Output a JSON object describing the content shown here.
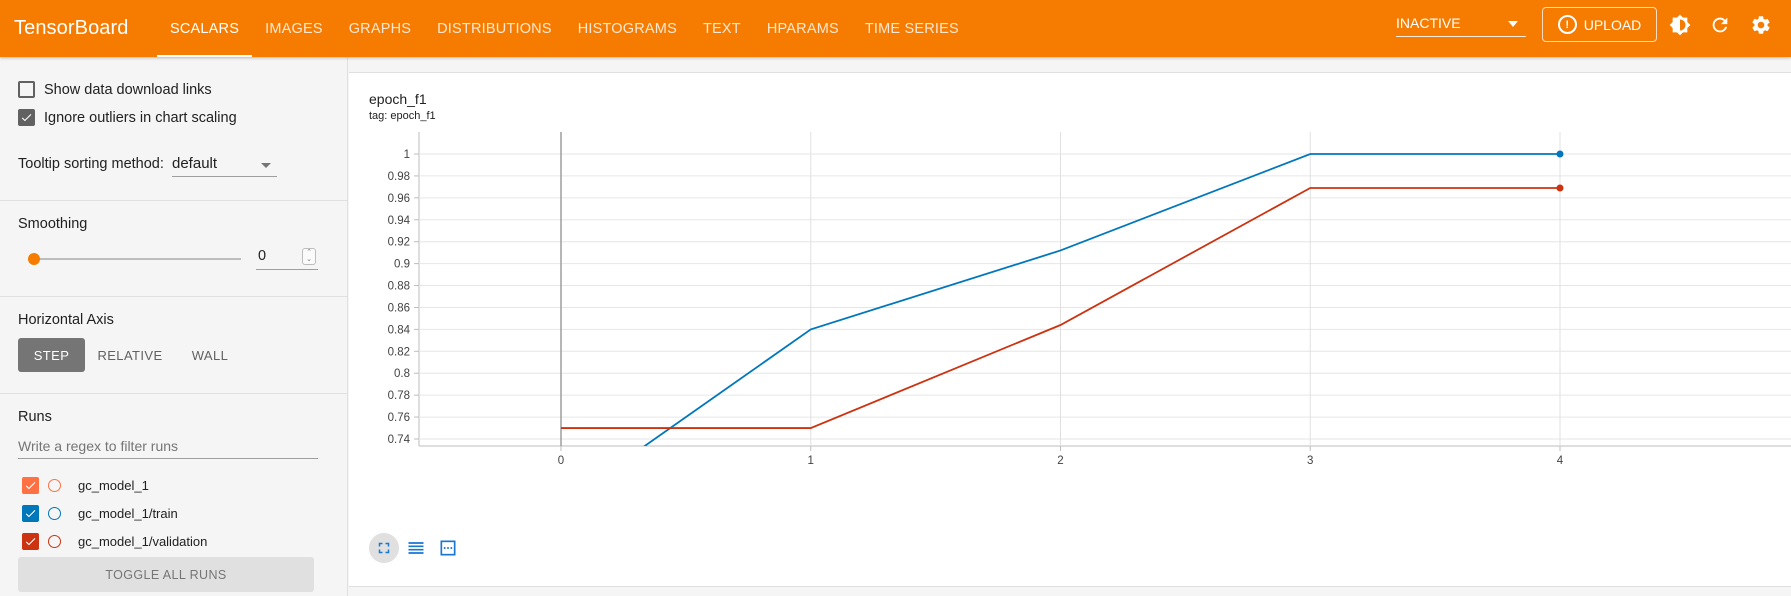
{
  "app": {
    "title": "TensorBoard"
  },
  "tabs": [
    {
      "label": "SCALARS",
      "active": true
    },
    {
      "label": "IMAGES",
      "active": false
    },
    {
      "label": "GRAPHS",
      "active": false
    },
    {
      "label": "DISTRIBUTIONS",
      "active": false
    },
    {
      "label": "HISTOGRAMS",
      "active": false
    },
    {
      "label": "TEXT",
      "active": false
    },
    {
      "label": "HPARAMS",
      "active": false
    },
    {
      "label": "TIME SERIES",
      "active": false
    }
  ],
  "header": {
    "status": "INACTIVE",
    "upload_label": "UPLOAD",
    "upload_glyph": "!",
    "icons": [
      "brightness-icon",
      "refresh-icon",
      "settings-icon"
    ]
  },
  "sidebar": {
    "show_download_links": {
      "label": "Show data download links",
      "checked": false
    },
    "ignore_outliers": {
      "label": "Ignore outliers in chart scaling",
      "checked": true
    },
    "tooltip_sorting": {
      "label": "Tooltip sorting method:",
      "value": "default"
    },
    "smoothing": {
      "label": "Smoothing",
      "value": "0",
      "spin_up": "⌃",
      "spin_down": "⌄"
    },
    "horizontal_axis": {
      "label": "Horizontal Axis",
      "options": [
        "STEP",
        "RELATIVE",
        "WALL"
      ],
      "selected": "STEP"
    },
    "runs": {
      "label": "Runs",
      "filter_placeholder": "Write a regex to filter runs",
      "items": [
        {
          "name": "gc_model_1",
          "color": "#ff7043",
          "checked": true
        },
        {
          "name": "gc_model_1/train",
          "color": "#0077bb",
          "checked": true
        },
        {
          "name": "gc_model_1/validation",
          "color": "#cc3311",
          "checked": true
        }
      ],
      "toggle_label": "TOGGLE ALL RUNS"
    }
  },
  "card": {
    "title": "epoch_f1",
    "tag": "tag: epoch_f1",
    "icons": [
      "fullscreen-icon",
      "log-scale-icon",
      "fit-domain-icon"
    ]
  },
  "chart_data": {
    "type": "line",
    "title": "epoch_f1",
    "subtitle": "tag: epoch_f1",
    "xlabel": "",
    "ylabel": "",
    "x_ticks": [
      0,
      1,
      2,
      3,
      4
    ],
    "y_ticks": [
      0.74,
      0.76,
      0.78,
      0.8,
      0.82,
      0.84,
      0.86,
      0.88,
      0.9,
      0.92,
      0.94,
      0.96,
      0.98,
      1
    ],
    "xlim": [
      -0.5,
      4.4
    ],
    "ylim": [
      0.72,
      1.02
    ],
    "grid": true,
    "series": [
      {
        "name": "gc_model_1/train",
        "color": "#0077bb",
        "x": [
          0,
          1,
          2,
          3,
          4
        ],
        "y": [
          0.68,
          0.84,
          0.912,
          1.0,
          1.0
        ]
      },
      {
        "name": "gc_model_1/validation",
        "color": "#cc3311",
        "x": [
          0,
          1,
          2,
          3,
          4
        ],
        "y": [
          0.75,
          0.75,
          0.844,
          0.969,
          0.969
        ]
      }
    ]
  }
}
